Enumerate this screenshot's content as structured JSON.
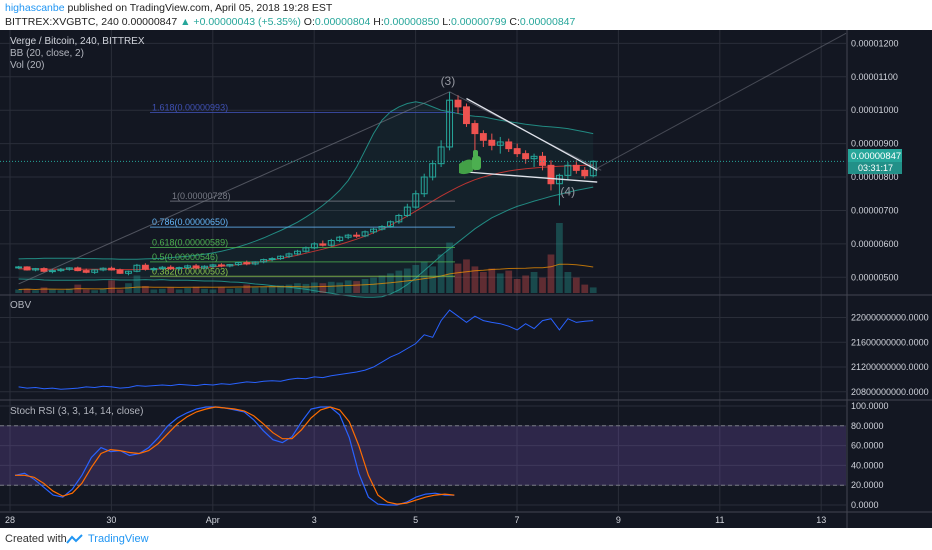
{
  "header": {
    "author": "highascanbe",
    "published": "published on TradingView.com, April 05, 2018 19:28 EST",
    "ticker": "BITTREX:XVGBTC, 240",
    "last_price": "0.00000847",
    "change": "▲ +0.00000043 (+5.35%)",
    "o_label": "O:",
    "o_val": "0.00000804",
    "h_label": "H:",
    "h_val": "0.00000850",
    "l_label": "L:",
    "l_val": "0.00000799",
    "c_label": "C:",
    "c_val": "0.00000847"
  },
  "legend": {
    "title": "Verge / Bitcoin, 240, BITTREX",
    "bb": "BB (20, close, 2)",
    "vol": "Vol (20)",
    "obv": "OBV",
    "stoch": "Stoch RSI (3, 3, 14, 14, close)"
  },
  "badges": {
    "price": "0.00000847",
    "countdown": "03:31:17"
  },
  "footer": {
    "created_with": "Created with",
    "brand": "TradingView"
  },
  "colors": {
    "background": "#131722",
    "grid": "#2a2e39",
    "up": "#26a69a",
    "down": "#ef5350",
    "bb_band": "#26a69a",
    "bb_basis": "#e53935",
    "obv": "#2962ff",
    "stoch_k": "#2962ff",
    "stoch_d": "#ff6d00",
    "stoch_band": "#7e57c2",
    "fib_1618": "#3f51b5",
    "fib_1": "#787b86",
    "fib_0786": "#64b5f6",
    "fib_0618": "#4caf50",
    "fib_05": "#4caf50",
    "fib_0382": "#8bc34a",
    "thumb": "#4caf50"
  },
  "icons": [
    "thumbs-up-icon",
    "tradingview-logo-icon"
  ],
  "chart_data": [
    {
      "type": "candlestick",
      "title": "Verge / Bitcoin, 240, BITTREX",
      "x_ticks": [
        "28",
        "30",
        "Apr",
        "3",
        "5",
        "7",
        "9",
        "11",
        "13"
      ],
      "x_range": [
        27.9,
        13.9
      ],
      "y_ticks": [
        "0.00000500",
        "0.00000600",
        "0.00000700",
        "0.00000800",
        "0.00000900",
        "0.00001000",
        "0.00001100",
        "0.00001200"
      ],
      "ylim": [
        4.5,
        12.4
      ],
      "y_unit": "1e-6 BTC",
      "ohlc": [
        [
          5.3,
          5.34,
          5.25,
          5.31
        ],
        [
          5.31,
          5.33,
          5.2,
          5.22
        ],
        [
          5.22,
          5.28,
          5.18,
          5.26
        ],
        [
          5.26,
          5.3,
          5.15,
          5.18
        ],
        [
          5.18,
          5.25,
          5.12,
          5.2
        ],
        [
          5.2,
          5.28,
          5.16,
          5.24
        ],
        [
          5.24,
          5.3,
          5.2,
          5.28
        ],
        [
          5.28,
          5.32,
          5.18,
          5.2
        ],
        [
          5.2,
          5.26,
          5.12,
          5.15
        ],
        [
          5.15,
          5.24,
          5.1,
          5.22
        ],
        [
          5.22,
          5.3,
          5.18,
          5.27
        ],
        [
          5.27,
          5.32,
          5.2,
          5.22
        ],
        [
          5.22,
          5.26,
          5.1,
          5.12
        ],
        [
          5.12,
          5.2,
          5.06,
          5.18
        ],
        [
          5.18,
          5.4,
          5.15,
          5.36
        ],
        [
          5.36,
          5.42,
          5.2,
          5.24
        ],
        [
          5.24,
          5.3,
          5.18,
          5.26
        ],
        [
          5.26,
          5.34,
          5.22,
          5.3
        ],
        [
          5.3,
          5.36,
          5.22,
          5.26
        ],
        [
          5.26,
          5.32,
          5.2,
          5.29
        ],
        [
          5.29,
          5.38,
          5.25,
          5.34
        ],
        [
          5.34,
          5.4,
          5.24,
          5.28
        ],
        [
          5.28,
          5.36,
          5.25,
          5.33
        ],
        [
          5.33,
          5.4,
          5.28,
          5.37
        ],
        [
          5.37,
          5.42,
          5.3,
          5.34
        ],
        [
          5.34,
          5.4,
          5.3,
          5.38
        ],
        [
          5.38,
          5.46,
          5.34,
          5.44
        ],
        [
          5.44,
          5.5,
          5.36,
          5.4
        ],
        [
          5.4,
          5.48,
          5.36,
          5.46
        ],
        [
          5.46,
          5.56,
          5.42,
          5.53
        ],
        [
          5.53,
          5.6,
          5.48,
          5.56
        ],
        [
          5.56,
          5.66,
          5.52,
          5.63
        ],
        [
          5.63,
          5.74,
          5.58,
          5.7
        ],
        [
          5.7,
          5.82,
          5.66,
          5.78
        ],
        [
          5.78,
          5.92,
          5.74,
          5.88
        ],
        [
          5.88,
          6.05,
          5.84,
          6.0
        ],
        [
          6.0,
          6.1,
          5.92,
          5.96
        ],
        [
          5.96,
          6.15,
          5.92,
          6.1
        ],
        [
          6.1,
          6.24,
          6.05,
          6.2
        ],
        [
          6.2,
          6.3,
          6.14,
          6.26
        ],
        [
          6.26,
          6.35,
          6.18,
          6.24
        ],
        [
          6.24,
          6.4,
          6.2,
          6.36
        ],
        [
          6.36,
          6.48,
          6.3,
          6.44
        ],
        [
          6.44,
          6.56,
          6.4,
          6.52
        ],
        [
          6.52,
          6.7,
          6.48,
          6.66
        ],
        [
          6.66,
          6.9,
          6.6,
          6.85
        ],
        [
          6.85,
          7.2,
          6.8,
          7.1
        ],
        [
          7.1,
          7.6,
          7.05,
          7.5
        ],
        [
          7.5,
          8.1,
          7.4,
          8.0
        ],
        [
          8.0,
          8.5,
          7.9,
          8.4
        ],
        [
          8.4,
          9.1,
          8.3,
          8.9
        ],
        [
          8.9,
          10.55,
          8.8,
          10.3
        ],
        [
          10.3,
          10.45,
          9.9,
          10.1
        ],
        [
          10.1,
          10.2,
          9.5,
          9.6
        ],
        [
          9.6,
          9.7,
          8.2,
          9.3
        ],
        [
          9.3,
          9.4,
          8.9,
          9.1
        ],
        [
          9.1,
          9.3,
          8.8,
          8.95
        ],
        [
          8.95,
          9.2,
          8.7,
          9.05
        ],
        [
          9.05,
          9.15,
          8.75,
          8.85
        ],
        [
          8.85,
          9.0,
          8.6,
          8.7
        ],
        [
          8.7,
          8.8,
          8.4,
          8.55
        ],
        [
          8.55,
          8.7,
          8.3,
          8.62
        ],
        [
          8.62,
          8.75,
          8.2,
          8.35
        ],
        [
          8.35,
          8.5,
          7.6,
          7.8
        ],
        [
          7.8,
          8.1,
          7.15,
          8.05
        ],
        [
          8.05,
          8.45,
          7.9,
          8.35
        ],
        [
          8.35,
          8.5,
          8.1,
          8.2
        ],
        [
          8.2,
          8.3,
          7.95,
          8.04
        ],
        [
          8.04,
          8.5,
          7.99,
          8.47
        ]
      ],
      "bb_upper": [
        5.55,
        5.56,
        5.56,
        5.57,
        5.57,
        5.57,
        5.57,
        5.57,
        5.56,
        5.56,
        5.55,
        5.55,
        5.54,
        5.54,
        5.54,
        5.55,
        5.56,
        5.57,
        5.59,
        5.61,
        5.63,
        5.66,
        5.69,
        5.73,
        5.78,
        5.84,
        5.91,
        5.99,
        6.08,
        6.18,
        6.29,
        6.4,
        6.52,
        6.65,
        6.8,
        6.97,
        7.15,
        7.36,
        7.6,
        7.9,
        8.3,
        8.8,
        9.3,
        9.7,
        9.95,
        10.1,
        10.2,
        10.25,
        10.2,
        10.1,
        10.0,
        9.95,
        9.9,
        9.85,
        9.82,
        9.8,
        9.75,
        9.7,
        9.66,
        9.62,
        9.58,
        9.55,
        9.52,
        9.5,
        9.48,
        9.45,
        9.4,
        9.35,
        9.3
      ],
      "bb_basis": [
        5.25,
        5.25,
        5.25,
        5.24,
        5.24,
        5.24,
        5.24,
        5.24,
        5.24,
        5.24,
        5.24,
        5.24,
        5.23,
        5.23,
        5.23,
        5.24,
        5.24,
        5.25,
        5.25,
        5.26,
        5.27,
        5.28,
        5.29,
        5.31,
        5.33,
        5.35,
        5.38,
        5.41,
        5.44,
        5.48,
        5.52,
        5.56,
        5.61,
        5.66,
        5.72,
        5.78,
        5.84,
        5.91,
        5.98,
        6.06,
        6.14,
        6.23,
        6.33,
        6.44,
        6.56,
        6.69,
        6.83,
        6.98,
        7.13,
        7.28,
        7.43,
        7.57,
        7.7,
        7.82,
        7.92,
        8.0,
        8.07,
        8.13,
        8.18,
        8.22,
        8.25,
        8.27,
        8.29,
        8.31,
        8.32,
        8.33,
        8.34,
        8.35,
        8.36
      ],
      "bb_lower": [
        4.95,
        4.94,
        4.94,
        4.92,
        4.91,
        4.91,
        4.91,
        4.91,
        4.92,
        4.92,
        4.93,
        4.93,
        4.92,
        4.92,
        4.92,
        4.93,
        4.92,
        4.93,
        4.91,
        4.91,
        4.91,
        4.9,
        4.89,
        4.89,
        4.88,
        4.86,
        4.85,
        4.83,
        4.8,
        4.78,
        4.75,
        4.72,
        4.7,
        4.67,
        4.64,
        4.6,
        4.56,
        4.52,
        4.48,
        4.45,
        4.42,
        4.4,
        4.4,
        4.42,
        4.5,
        4.62,
        4.78,
        4.98,
        5.2,
        5.42,
        5.65,
        5.85,
        6.05,
        6.25,
        6.45,
        6.62,
        6.78,
        6.9,
        7.02,
        7.12,
        7.2,
        7.28,
        7.35,
        7.42,
        7.48,
        7.54,
        7.6,
        7.65,
        7.7
      ],
      "volume": [
        0.05,
        0.06,
        0.04,
        0.08,
        0.05,
        0.04,
        0.06,
        0.12,
        0.05,
        0.04,
        0.06,
        0.18,
        0.05,
        0.14,
        0.25,
        0.1,
        0.05,
        0.06,
        0.08,
        0.05,
        0.07,
        0.09,
        0.06,
        0.05,
        0.08,
        0.06,
        0.07,
        0.12,
        0.08,
        0.09,
        0.1,
        0.11,
        0.12,
        0.14,
        0.13,
        0.15,
        0.14,
        0.16,
        0.15,
        0.18,
        0.17,
        0.2,
        0.22,
        0.25,
        0.28,
        0.32,
        0.35,
        0.4,
        0.45,
        0.38,
        0.55,
        0.72,
        0.42,
        0.48,
        0.38,
        0.3,
        0.35,
        0.28,
        0.32,
        0.2,
        0.25,
        0.3,
        0.22,
        0.55,
        1.0,
        0.3,
        0.22,
        0.12,
        0.08
      ],
      "fib_levels": [
        {
          "label": "1.618(0.00000993)",
          "value": 9.93
        },
        {
          "label": "1(0.00000728)",
          "value": 7.28
        },
        {
          "label": "0.786(0.00000650)",
          "value": 6.5
        },
        {
          "label": "0.618(0.00000589)",
          "value": 5.89
        },
        {
          "label": "0.5(0.00000546)",
          "value": 5.46
        },
        {
          "label": "0.382(0.00000503)",
          "value": 5.03
        }
      ],
      "annotations": [
        {
          "label": "(3)"
        },
        {
          "label": "(4)"
        }
      ],
      "last_price": 8.47
    },
    {
      "type": "line",
      "title": "OBV",
      "y_ticks": [
        "20800000000.0000",
        "21200000000.0000",
        "21600000000.0000",
        "22000000000.0000"
      ],
      "ylim": [
        20.7,
        22.25
      ],
      "y_unit": "1e9",
      "values": [
        20.88,
        20.86,
        20.87,
        20.85,
        20.86,
        20.84,
        20.85,
        20.86,
        20.88,
        20.87,
        20.89,
        20.88,
        20.86,
        20.87,
        20.9,
        20.89,
        20.9,
        20.91,
        20.9,
        20.92,
        20.91,
        20.9,
        20.92,
        20.91,
        20.93,
        20.92,
        20.94,
        20.96,
        20.95,
        20.97,
        20.98,
        20.97,
        21.0,
        21.02,
        21.01,
        21.04,
        21.03,
        21.06,
        21.08,
        21.1,
        21.12,
        21.15,
        21.2,
        21.28,
        21.36,
        21.42,
        21.5,
        21.58,
        21.72,
        21.68,
        21.95,
        22.12,
        22.02,
        21.92,
        22.02,
        21.95,
        21.92,
        21.9,
        21.86,
        21.8,
        21.9,
        21.82,
        21.95,
        21.98,
        21.8,
        21.98,
        21.92,
        21.94,
        21.95
      ]
    },
    {
      "type": "line",
      "title": "Stoch RSI (3, 3, 14, 14, close)",
      "y_ticks": [
        "0.0000",
        "20.0000",
        "40.0000",
        "60.0000",
        "80.0000",
        "100.0000"
      ],
      "ylim": [
        -5,
        102
      ],
      "bands": [
        20,
        80
      ],
      "series": [
        {
          "values": [
            30,
            32,
            26,
            18,
            10,
            8,
            16,
            30,
            48,
            58,
            54,
            55,
            50,
            52,
            58,
            68,
            80,
            88,
            93,
            97,
            99,
            99,
            98,
            96,
            94,
            86,
            75,
            66,
            63,
            69,
            84,
            97,
            99,
            99,
            91,
            68,
            32,
            8,
            1,
            0,
            0,
            3,
            8,
            11,
            12,
            10,
            10
          ]
        },
        {
          "values": [
            30,
            30,
            28,
            22,
            14,
            9,
            12,
            22,
            38,
            52,
            56,
            55,
            53,
            52,
            55,
            62,
            72,
            82,
            89,
            94,
            97,
            99,
            98,
            97,
            95,
            90,
            82,
            73,
            67,
            67,
            76,
            88,
            96,
            99,
            96,
            84,
            60,
            30,
            10,
            3,
            1,
            2,
            5,
            8,
            10,
            11,
            10
          ]
        }
      ]
    }
  ]
}
